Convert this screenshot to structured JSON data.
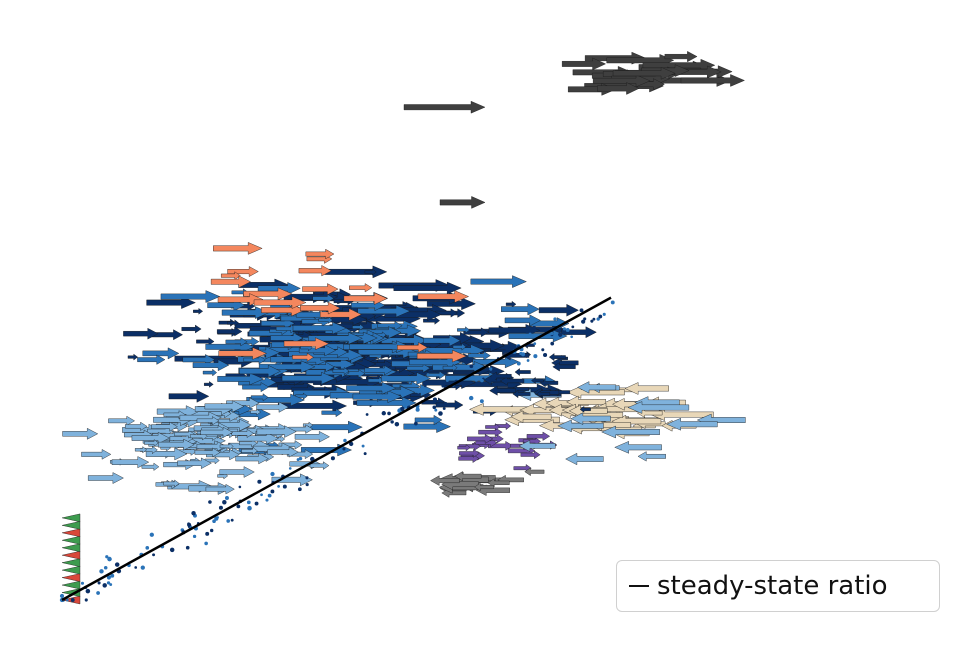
{
  "chart_data": {
    "type": "quiver",
    "description_of_axes": "hidden",
    "axes_visible": false,
    "grid": false,
    "xlim": [
      0,
      1
    ],
    "ylim": [
      0,
      1
    ],
    "reference_line": {
      "name": "steady-state ratio",
      "from": [
        0.0,
        0.0
      ],
      "to": [
        0.61,
        0.54
      ],
      "color": "#000000"
    },
    "legend": {
      "placement": "bottom-right",
      "entries": [
        "steady-state ratio"
      ]
    },
    "colors": {
      "navy": "#0b2f66",
      "mid_blue": "#2a73b8",
      "light_blue": "#7fb2dc",
      "salmon": "#f4875e",
      "dark_gray": "#3f3f3f",
      "gray": "#7a7a7a",
      "beige": "#e8d7b8",
      "purple": "#6e4fa8",
      "green": "#3d9b4e",
      "red": "#d9473a"
    },
    "clusters": [
      {
        "group": "dark_gray",
        "direction": "right",
        "center": [
          0.62,
          0.94
        ],
        "spread": [
          0.08,
          0.04
        ],
        "count": 22,
        "length": [
          0.03,
          0.09
        ]
      },
      {
        "group": "dark_gray_outliers",
        "direction": "right",
        "points": [
          [
            0.38,
            0.88
          ],
          [
            0.42,
            0.71
          ]
        ],
        "length": [
          0.09,
          0.05
        ]
      },
      {
        "group": "navy",
        "direction": "right",
        "center": [
          0.3,
          0.46
        ],
        "spread": [
          0.2,
          0.12
        ],
        "count": 180,
        "length": [
          0.01,
          0.08
        ]
      },
      {
        "group": "mid_blue",
        "direction": "right",
        "center": [
          0.3,
          0.44
        ],
        "spread": [
          0.2,
          0.12
        ],
        "count": 140,
        "length": [
          0.01,
          0.07
        ]
      },
      {
        "group": "light_blue",
        "direction": "right",
        "center": [
          0.15,
          0.28
        ],
        "spread": [
          0.12,
          0.08
        ],
        "count": 110,
        "length": [
          0.01,
          0.05
        ]
      },
      {
        "group": "salmon",
        "direction": "right",
        "center": [
          0.28,
          0.52
        ],
        "spread": [
          0.12,
          0.1
        ],
        "count": 22,
        "length": [
          0.02,
          0.06
        ]
      },
      {
        "group": "beige",
        "direction": "left",
        "center": [
          0.62,
          0.33
        ],
        "spread": [
          0.1,
          0.04
        ],
        "count": 40,
        "length": [
          0.02,
          0.07
        ]
      },
      {
        "group": "purple",
        "direction": "right",
        "center": [
          0.48,
          0.28
        ],
        "spread": [
          0.08,
          0.05
        ],
        "count": 22,
        "length": [
          0.01,
          0.03
        ]
      },
      {
        "group": "gray",
        "direction": "left",
        "center": [
          0.48,
          0.21
        ],
        "spread": [
          0.05,
          0.02
        ],
        "count": 16,
        "length": [
          0.02,
          0.06
        ]
      },
      {
        "group": "light_blue_left",
        "direction": "left",
        "center": [
          0.66,
          0.32
        ],
        "spread": [
          0.1,
          0.08
        ],
        "count": 14,
        "length": [
          0.02,
          0.07
        ]
      },
      {
        "group": "navy_left",
        "direction": "left",
        "center": [
          0.55,
          0.38
        ],
        "spread": [
          0.08,
          0.08
        ],
        "count": 20,
        "length": [
          0.01,
          0.03
        ]
      },
      {
        "group": "green_red_fan",
        "direction": "up",
        "center": [
          0.0,
          0.08
        ],
        "spread": [
          0.005,
          0.08
        ],
        "count": 12,
        "length": [
          0.01,
          0.02
        ]
      },
      {
        "group": "small_dots",
        "direction": "none",
        "center": [
          0.35,
          0.35
        ],
        "spread": [
          0.18,
          0.15
        ],
        "count": 160,
        "length": [
          0.0,
          0.0
        ]
      }
    ]
  }
}
